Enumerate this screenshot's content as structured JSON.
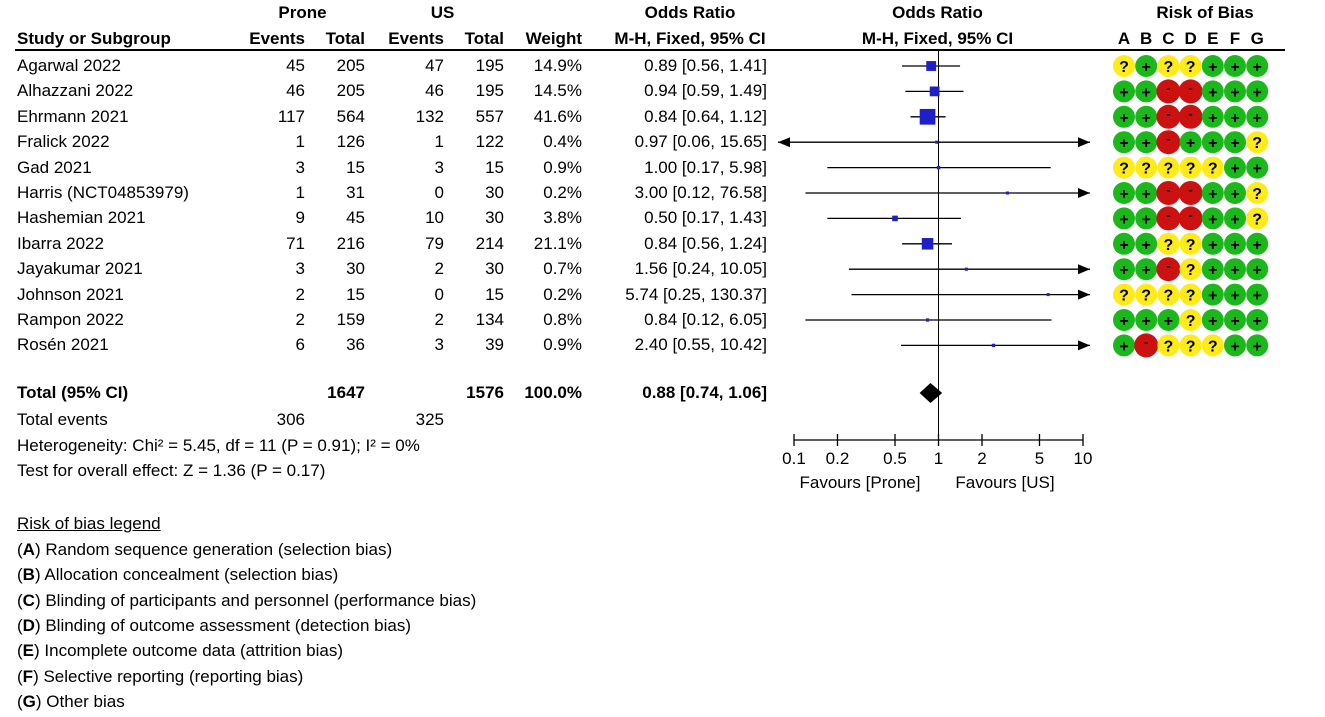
{
  "chart_data": {
    "type": "forest",
    "headers": {
      "group1": "Prone",
      "group2": "US",
      "study": "Study or Subgroup",
      "events": "Events",
      "total": "Total",
      "weight": "Weight",
      "or_title": "Odds Ratio",
      "or_method": "M-H, Fixed, 95% CI",
      "plot_title": "Odds Ratio",
      "plot_method": "M-H, Fixed, 95% CI",
      "rob_title": "Risk of Bias",
      "rob_cols": [
        "A",
        "B",
        "C",
        "D",
        "E",
        "F",
        "G"
      ]
    },
    "studies": [
      {
        "name": "Agarwal 2022",
        "e1": "45",
        "t1": "205",
        "e2": "47",
        "t2": "195",
        "weight": "14.9%",
        "ci_text": "0.89 [0.56, 1.41]",
        "or": 0.89,
        "lo": 0.56,
        "hi": 1.41,
        "w": 14.9,
        "rob": [
          "?",
          "+",
          "?",
          "?",
          "+",
          "+",
          "+"
        ]
      },
      {
        "name": "Alhazzani 2022",
        "e1": "46",
        "t1": "205",
        "e2": "46",
        "t2": "195",
        "weight": "14.5%",
        "ci_text": "0.94 [0.59, 1.49]",
        "or": 0.94,
        "lo": 0.59,
        "hi": 1.49,
        "w": 14.5,
        "rob": [
          "+",
          "+",
          "-",
          "-",
          "+",
          "+",
          "+"
        ]
      },
      {
        "name": "Ehrmann 2021",
        "e1": "117",
        "t1": "564",
        "e2": "132",
        "t2": "557",
        "weight": "41.6%",
        "ci_text": "0.84 [0.64, 1.12]",
        "or": 0.84,
        "lo": 0.64,
        "hi": 1.12,
        "w": 41.6,
        "rob": [
          "+",
          "+",
          "-",
          "-",
          "+",
          "+",
          "+"
        ]
      },
      {
        "name": "Fralick 2022",
        "e1": "1",
        "t1": "126",
        "e2": "1",
        "t2": "122",
        "weight": "0.4%",
        "ci_text": "0.97 [0.06, 15.65]",
        "or": 0.97,
        "lo": 0.06,
        "hi": 15.65,
        "w": 0.4,
        "rob": [
          "+",
          "+",
          "-",
          "+",
          "+",
          "+",
          "?"
        ]
      },
      {
        "name": "Gad 2021",
        "e1": "3",
        "t1": "15",
        "e2": "3",
        "t2": "15",
        "weight": "0.9%",
        "ci_text": "1.00 [0.17, 5.98]",
        "or": 1.0,
        "lo": 0.17,
        "hi": 5.98,
        "w": 0.9,
        "rob": [
          "?",
          "?",
          "?",
          "?",
          "?",
          "+",
          "+"
        ]
      },
      {
        "name": "Harris (NCT04853979)",
        "e1": "1",
        "t1": "31",
        "e2": "0",
        "t2": "30",
        "weight": "0.2%",
        "ci_text": "3.00 [0.12, 76.58]",
        "or": 3.0,
        "lo": 0.12,
        "hi": 76.58,
        "w": 0.2,
        "rob": [
          "+",
          "+",
          "-",
          "-",
          "+",
          "+",
          "?"
        ]
      },
      {
        "name": "Hashemian 2021",
        "e1": "9",
        "t1": "45",
        "e2": "10",
        "t2": "30",
        "weight": "3.8%",
        "ci_text": "0.50 [0.17, 1.43]",
        "or": 0.5,
        "lo": 0.17,
        "hi": 1.43,
        "w": 3.8,
        "rob": [
          "+",
          "+",
          "-",
          "-",
          "+",
          "+",
          "?"
        ]
      },
      {
        "name": "Ibarra 2022",
        "e1": "71",
        "t1": "216",
        "e2": "79",
        "t2": "214",
        "weight": "21.1%",
        "ci_text": "0.84 [0.56, 1.24]",
        "or": 0.84,
        "lo": 0.56,
        "hi": 1.24,
        "w": 21.1,
        "rob": [
          "+",
          "+",
          "?",
          "?",
          "+",
          "+",
          "+"
        ]
      },
      {
        "name": "Jayakumar 2021",
        "e1": "3",
        "t1": "30",
        "e2": "2",
        "t2": "30",
        "weight": "0.7%",
        "ci_text": "1.56 [0.24, 10.05]",
        "or": 1.56,
        "lo": 0.24,
        "hi": 10.05,
        "w": 0.7,
        "rob": [
          "+",
          "+",
          "-",
          "?",
          "+",
          "+",
          "+"
        ]
      },
      {
        "name": "Johnson 2021",
        "e1": "2",
        "t1": "15",
        "e2": "0",
        "t2": "15",
        "weight": "0.2%",
        "ci_text": "5.74 [0.25, 130.37]",
        "or": 5.74,
        "lo": 0.25,
        "hi": 130.37,
        "w": 0.2,
        "rob": [
          "?",
          "?",
          "?",
          "?",
          "+",
          "+",
          "+"
        ]
      },
      {
        "name": "Rampon 2022",
        "e1": "2",
        "t1": "159",
        "e2": "2",
        "t2": "134",
        "weight": "0.8%",
        "ci_text": "0.84 [0.12, 6.05]",
        "or": 0.84,
        "lo": 0.12,
        "hi": 6.05,
        "w": 0.8,
        "rob": [
          "+",
          "+",
          "+",
          "?",
          "+",
          "+",
          "+"
        ]
      },
      {
        "name": "Rosén 2021",
        "e1": "6",
        "t1": "36",
        "e2": "3",
        "t2": "39",
        "weight": "0.9%",
        "ci_text": "2.40 [0.55, 10.42]",
        "or": 2.4,
        "lo": 0.55,
        "hi": 10.42,
        "w": 0.9,
        "rob": [
          "+",
          "-",
          "?",
          "?",
          "?",
          "+",
          "+"
        ]
      }
    ],
    "total": {
      "label": "Total (95% CI)",
      "t1": "1647",
      "t2": "1576",
      "weight": "100.0%",
      "ci_text": "0.88 [0.74, 1.06]",
      "or": 0.88,
      "lo": 0.74,
      "hi": 1.06
    },
    "total_events": {
      "label": "Total events",
      "e1": "306",
      "e2": "325"
    },
    "heterogeneity": "Heterogeneity: Chi² = 5.45, df = 11 (P = 0.91); I² = 0%",
    "overall_effect": "Test for overall effect: Z = 1.36 (P = 0.17)",
    "x_axis": {
      "scale": "log",
      "xlim": [
        0.1,
        10
      ],
      "ticks": [
        0.1,
        0.2,
        0.5,
        1,
        2,
        5,
        10
      ],
      "tick_labels": [
        "0.1",
        "0.2",
        "0.5",
        "1",
        "2",
        "5",
        "10"
      ],
      "favours_left": "Favours [Prone]",
      "favours_right": "Favours [US]"
    },
    "rob_legend": {
      "title": "Risk of bias legend",
      "items": [
        {
          "key": "A",
          "text": ") Random sequence generation (selection bias)"
        },
        {
          "key": "B",
          "text": ") Allocation concealment (selection bias)"
        },
        {
          "key": "C",
          "text": ") Blinding of participants and personnel (performance bias)"
        },
        {
          "key": "D",
          "text": ") Blinding of outcome assessment (detection bias)"
        },
        {
          "key": "E",
          "text": ") Incomplete outcome data (attrition bias)"
        },
        {
          "key": "F",
          "text": ") Selective reporting (reporting bias)"
        },
        {
          "key": "G",
          "text": ") Other bias"
        }
      ]
    },
    "colors": {
      "low": "#1ab81a",
      "unclear": "#ffeb1a",
      "high": "#cc1111",
      "marker": "#1f1fc8",
      "diamond": "#000000"
    }
  }
}
